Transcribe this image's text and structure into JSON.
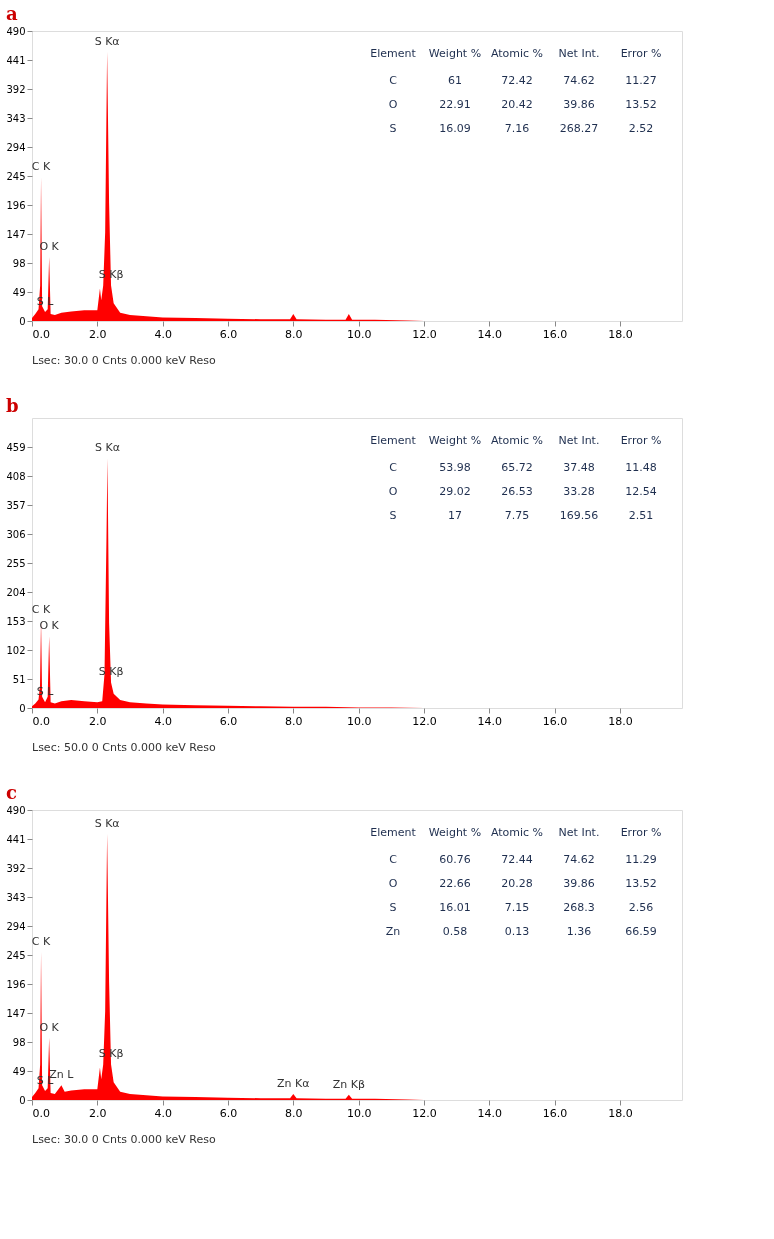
{
  "chart_data": [
    {
      "type": "area",
      "title": "a",
      "color": "#ff0000",
      "x": [
        0.0,
        0.1,
        0.2,
        0.25,
        0.277,
        0.31,
        0.4,
        0.48,
        0.525,
        0.57,
        0.7,
        0.9,
        1.2,
        1.6,
        2.0,
        2.08,
        2.12,
        2.18,
        2.24,
        2.3,
        2.36,
        2.42,
        2.5,
        2.7,
        3.0,
        3.5,
        4.0,
        5.0,
        6.0,
        7.0,
        7.9,
        8.0,
        8.1,
        9.0,
        9.6,
        9.7,
        9.8,
        10.5,
        11.5,
        12.0,
        19.9
      ],
      "values": [
        5,
        12,
        20,
        60,
        243,
        25,
        15,
        20,
        108,
        12,
        10,
        14,
        16,
        18,
        18,
        55,
        35,
        60,
        150,
        455,
        200,
        60,
        30,
        14,
        10,
        8,
        6,
        5,
        4,
        3,
        3,
        12,
        3,
        2,
        2,
        12,
        2,
        2,
        1,
        0,
        0
      ],
      "annotations": [
        "Element",
        "Weight %",
        "Atomic %",
        "Net Int.",
        "Error %",
        "C",
        "61",
        "72.42",
        "74.62",
        "11.27",
        "O",
        "22.91",
        "20.42",
        "39.86",
        "13.52",
        "S",
        "16.09",
        "7.16",
        "268.27",
        "2.52",
        {
          "text": "S Kα",
          "x": 2.3,
          "y": 455
        },
        {
          "text": "C K",
          "x": 0.277,
          "y": 243
        },
        {
          "text": "O K",
          "x": 0.525,
          "y": 108
        },
        {
          "text": "S Kβ",
          "x": 2.42,
          "y": 60
        },
        {
          "text": "S L",
          "x": 0.4,
          "y": 15
        },
        "Lsec: 30.0 0 Cnts 0.000 keV Reso"
      ],
      "xlim": [
        0,
        19.9
      ],
      "ylim": [
        0,
        490
      ],
      "xticks": [
        {
          "value": 0,
          "label": "0.0"
        },
        {
          "value": 2,
          "label": "2.0"
        },
        {
          "value": 4,
          "label": "4.0"
        },
        {
          "value": 6,
          "label": "6.0"
        },
        {
          "value": 8,
          "label": "8.0"
        },
        {
          "value": 10,
          "label": "10.0"
        },
        {
          "value": 12,
          "label": "12.0"
        },
        {
          "value": 14,
          "label": "14.0"
        },
        {
          "value": 16,
          "label": "16.0"
        },
        {
          "value": 18,
          "label": "18.0"
        }
      ],
      "yticks": [
        0,
        49,
        98,
        147,
        196,
        245,
        294,
        343,
        392,
        441,
        490
      ]
    },
    {
      "type": "area",
      "title": "b",
      "color": "#ff0000",
      "x": [
        0.0,
        0.1,
        0.2,
        0.245,
        0.277,
        0.31,
        0.4,
        0.48,
        0.525,
        0.57,
        0.7,
        0.9,
        1.2,
        1.6,
        2.0,
        2.15,
        2.22,
        2.28,
        2.31,
        2.36,
        2.42,
        2.5,
        2.7,
        3.0,
        3.5,
        4.0,
        5.0,
        6.0,
        7.0,
        8.0,
        9.0,
        10.0,
        11.0,
        12.0,
        19.9
      ],
      "values": [
        3,
        8,
        15,
        40,
        154,
        20,
        10,
        20,
        126,
        10,
        8,
        12,
        14,
        12,
        10,
        12,
        60,
        300,
        439,
        150,
        45,
        25,
        14,
        10,
        8,
        6,
        5,
        4,
        3,
        2,
        2,
        1,
        1,
        0,
        0
      ],
      "annotations": [
        "Element",
        "Weight %",
        "Atomic %",
        "Net Int.",
        "Error %",
        "C",
        "53.98",
        "65.72",
        "37.48",
        "11.48",
        "O",
        "29.02",
        "26.53",
        "33.28",
        "12.54",
        "S",
        "17",
        "7.75",
        "169.56",
        "2.51",
        {
          "text": "S Kα",
          "x": 2.31,
          "y": 439
        },
        {
          "text": "C K",
          "x": 0.277,
          "y": 154
        },
        {
          "text": "O K",
          "x": 0.525,
          "y": 126
        },
        {
          "text": "S Kβ",
          "x": 2.42,
          "y": 45
        },
        {
          "text": "S L",
          "x": 0.4,
          "y": 10
        },
        "Lsec: 50.0 0 Cnts 0.000 keV Reso"
      ],
      "xlim": [
        0,
        19.9
      ],
      "ylim": [
        0,
        510
      ],
      "xticks": [
        {
          "value": 0,
          "label": "0.0"
        },
        {
          "value": 2,
          "label": "2.0"
        },
        {
          "value": 4,
          "label": "4.0"
        },
        {
          "value": 6,
          "label": "6.0"
        },
        {
          "value": 8,
          "label": "8.0"
        },
        {
          "value": 10,
          "label": "10.0"
        },
        {
          "value": 12,
          "label": "12.0"
        },
        {
          "value": 14,
          "label": "14.0"
        },
        {
          "value": 16,
          "label": "16.0"
        },
        {
          "value": 18,
          "label": "18.0"
        }
      ],
      "yticks": [
        0,
        51,
        102,
        153,
        204,
        255,
        306,
        357,
        408,
        459
      ]
    },
    {
      "type": "area",
      "title": "c",
      "color": "#ff0000",
      "x": [
        0.0,
        0.1,
        0.2,
        0.25,
        0.277,
        0.31,
        0.4,
        0.48,
        0.525,
        0.57,
        0.7,
        0.9,
        1.0,
        1.2,
        1.6,
        2.0,
        2.08,
        2.12,
        2.18,
        2.24,
        2.3,
        2.36,
        2.42,
        2.5,
        2.7,
        3.0,
        3.5,
        4.0,
        5.0,
        6.0,
        7.0,
        7.9,
        8.0,
        8.1,
        9.0,
        9.6,
        9.7,
        9.8,
        10.5,
        11.5,
        12.0,
        19.9
      ],
      "values": [
        5,
        12,
        20,
        60,
        250,
        25,
        15,
        20,
        105,
        12,
        10,
        25,
        14,
        16,
        18,
        18,
        55,
        35,
        60,
        150,
        450,
        200,
        60,
        30,
        14,
        10,
        8,
        6,
        5,
        4,
        3,
        3,
        10,
        3,
        2,
        2,
        9,
        2,
        2,
        1,
        0,
        0
      ],
      "annotations": [
        "Element",
        "Weight %",
        "Atomic %",
        "Net Int.",
        "Error %",
        "C",
        "60.76",
        "72.44",
        "74.62",
        "11.29",
        "O",
        "22.66",
        "20.28",
        "39.86",
        "13.52",
        "S",
        "16.01",
        "7.15",
        "268.3",
        "2.56",
        "Zn",
        "0.58",
        "0.13",
        "1.36",
        "66.59",
        {
          "text": "S Kα",
          "x": 2.3,
          "y": 450
        },
        {
          "text": "C K",
          "x": 0.277,
          "y": 250
        },
        {
          "text": "O K",
          "x": 0.525,
          "y": 105
        },
        {
          "text": "S Kβ",
          "x": 2.42,
          "y": 60
        },
        {
          "text": "S L",
          "x": 0.4,
          "y": 15
        },
        {
          "text": "Zn L",
          "x": 0.9,
          "y": 25
        },
        {
          "text": "Zn Kα",
          "x": 8.0,
          "y": 10
        },
        {
          "text": "Zn Kβ",
          "x": 9.7,
          "y": 9
        },
        "Lsec: 30.0 0 Cnts 0.000 keV Reso"
      ],
      "xlim": [
        0,
        19.9
      ],
      "ylim": [
        0,
        490
      ],
      "xticks": [
        {
          "value": 0,
          "label": "0.0"
        },
        {
          "value": 2,
          "label": "2.0"
        },
        {
          "value": 4,
          "label": "4.0"
        },
        {
          "value": 6,
          "label": "6.0"
        },
        {
          "value": 8,
          "label": "8.0"
        },
        {
          "value": 10,
          "label": "10.0"
        },
        {
          "value": 12,
          "label": "12.0"
        },
        {
          "value": 14,
          "label": "14.0"
        },
        {
          "value": 16,
          "label": "16.0"
        },
        {
          "value": 18,
          "label": "18.0"
        }
      ],
      "yticks": [
        0,
        49,
        98,
        147,
        196,
        245,
        294,
        343,
        392,
        441,
        490
      ]
    }
  ]
}
